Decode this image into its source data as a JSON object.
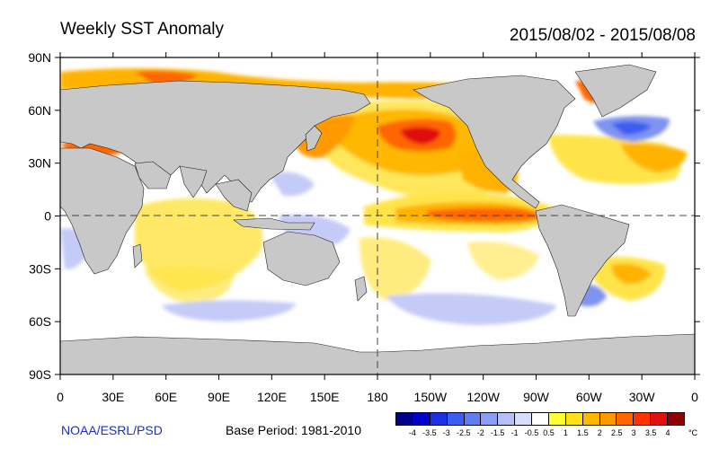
{
  "title": "Weekly SST Anomaly",
  "date_range": "2015/08/02 - 2015/08/08",
  "credit": "NOAA/ESRL/PSD",
  "base_period": "Base Period: 1981-2010",
  "lat_labels": [
    "90N",
    "60N",
    "30N",
    "0",
    "30S",
    "60S",
    "90S"
  ],
  "lon_labels": [
    "0",
    "30E",
    "60E",
    "90E",
    "120E",
    "150E",
    "180",
    "150W",
    "120W",
    "90W",
    "60W",
    "30W",
    "0"
  ],
  "colorbar": {
    "unit": "°C",
    "labels": [
      "-4",
      "-3.5",
      "-3",
      "-2.5",
      "-2",
      "-1.5",
      "-1",
      "-0.5",
      "0.5",
      "1",
      "1.5",
      "2",
      "2.5",
      "3",
      "3.5",
      "4"
    ],
    "colors": [
      "#00008b",
      "#0000cd",
      "#1e2fe6",
      "#3d5cf0",
      "#5f7ef2",
      "#8a9ef5",
      "#b4c0f7",
      "#d8def9",
      "#ffffff",
      "#ffff33",
      "#ffe01a",
      "#ffb700",
      "#ff9900",
      "#ff6600",
      "#ff3300",
      "#e01010",
      "#8b0000"
    ]
  },
  "colors": {
    "land": "#c8c8c8",
    "ocean": "#ffffff",
    "warm_weak": "#ffe44a",
    "warm_mid": "#ffb300",
    "warm_strong": "#ff6600",
    "warm_extreme": "#e01010",
    "cool_weak": "#c4cbf7",
    "cool_mid": "#7f93f0",
    "cool_strong": "#2a3fd8"
  }
}
